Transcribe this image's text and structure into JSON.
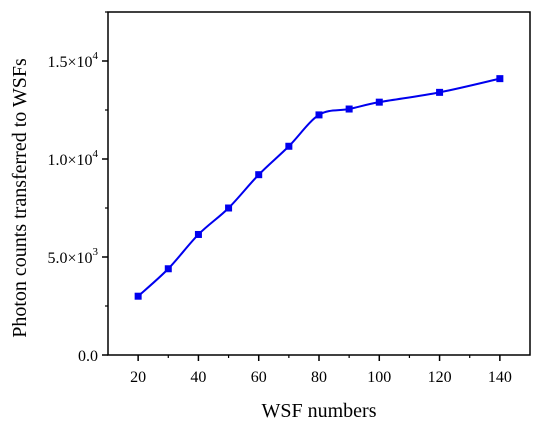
{
  "chart_data": {
    "type": "line",
    "title": "",
    "xlabel": "WSF numbers",
    "ylabel": "Photon counts transferred to WSFs",
    "xlim": [
      10,
      150
    ],
    "ylim": [
      0,
      17500
    ],
    "grid": false,
    "x_ticks": [
      20,
      40,
      60,
      80,
      100,
      120,
      140
    ],
    "x_tick_labels": [
      "20",
      "40",
      "60",
      "80",
      "100",
      "120",
      "140"
    ],
    "y_ticks": [
      0,
      5000,
      10000,
      15000
    ],
    "y_tick_labels": [
      {
        "base": "0.0",
        "exp": ""
      },
      {
        "base": "5.0×10",
        "exp": "3"
      },
      {
        "base": "1.0×10",
        "exp": "4"
      },
      {
        "base": "1.5×10",
        "exp": "4"
      }
    ],
    "series_color": "#0000ee",
    "series": [
      {
        "name": "",
        "x": [
          20,
          30,
          40,
          50,
          60,
          70,
          80,
          90,
          100,
          120,
          140
        ],
        "values": [
          3000,
          4400,
          6150,
          7500,
          9200,
          10650,
          12250,
          12550,
          12900,
          13400,
          14100
        ]
      }
    ]
  }
}
